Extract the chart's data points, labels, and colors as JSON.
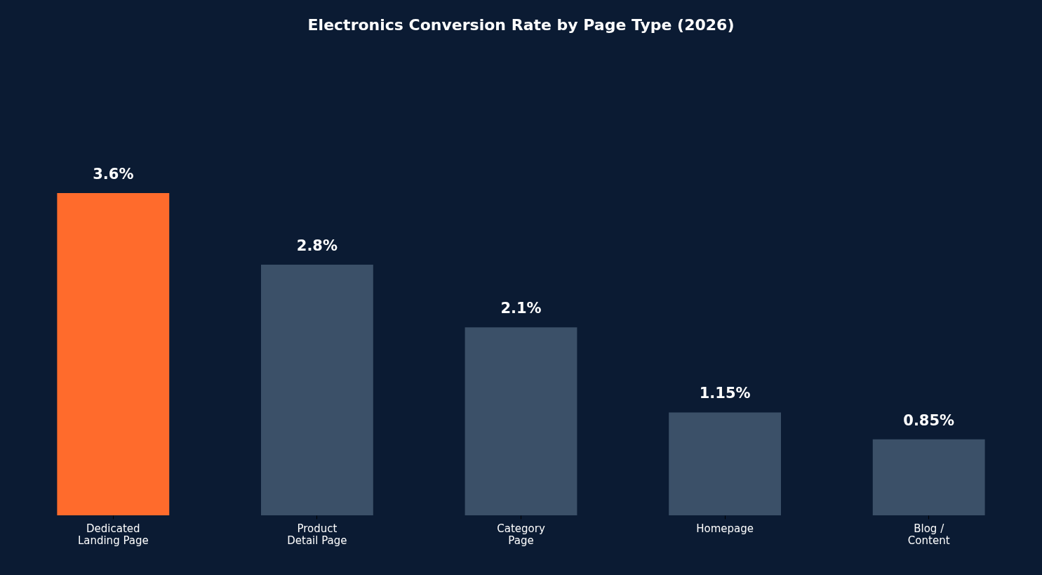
{
  "chart_data": {
    "type": "bar",
    "title": "Electronics Conversion Rate by Page Type (2026)",
    "categories": [
      "Dedicated\nLanding Page",
      "Product\nDetail Page",
      "Category\nPage",
      "Homepage",
      "Blog /\nContent"
    ],
    "values": [
      3.6,
      2.8,
      2.1,
      1.15,
      0.85
    ],
    "colors": [
      "#ff6b2c",
      "#3b5068",
      "#3b5068",
      "#3b5068",
      "#3b5068"
    ],
    "value_labels": [
      "3.6%",
      "2.8%",
      "2.1%",
      "1.15%",
      "0.85%"
    ],
    "tick_labels": "x"
  }
}
